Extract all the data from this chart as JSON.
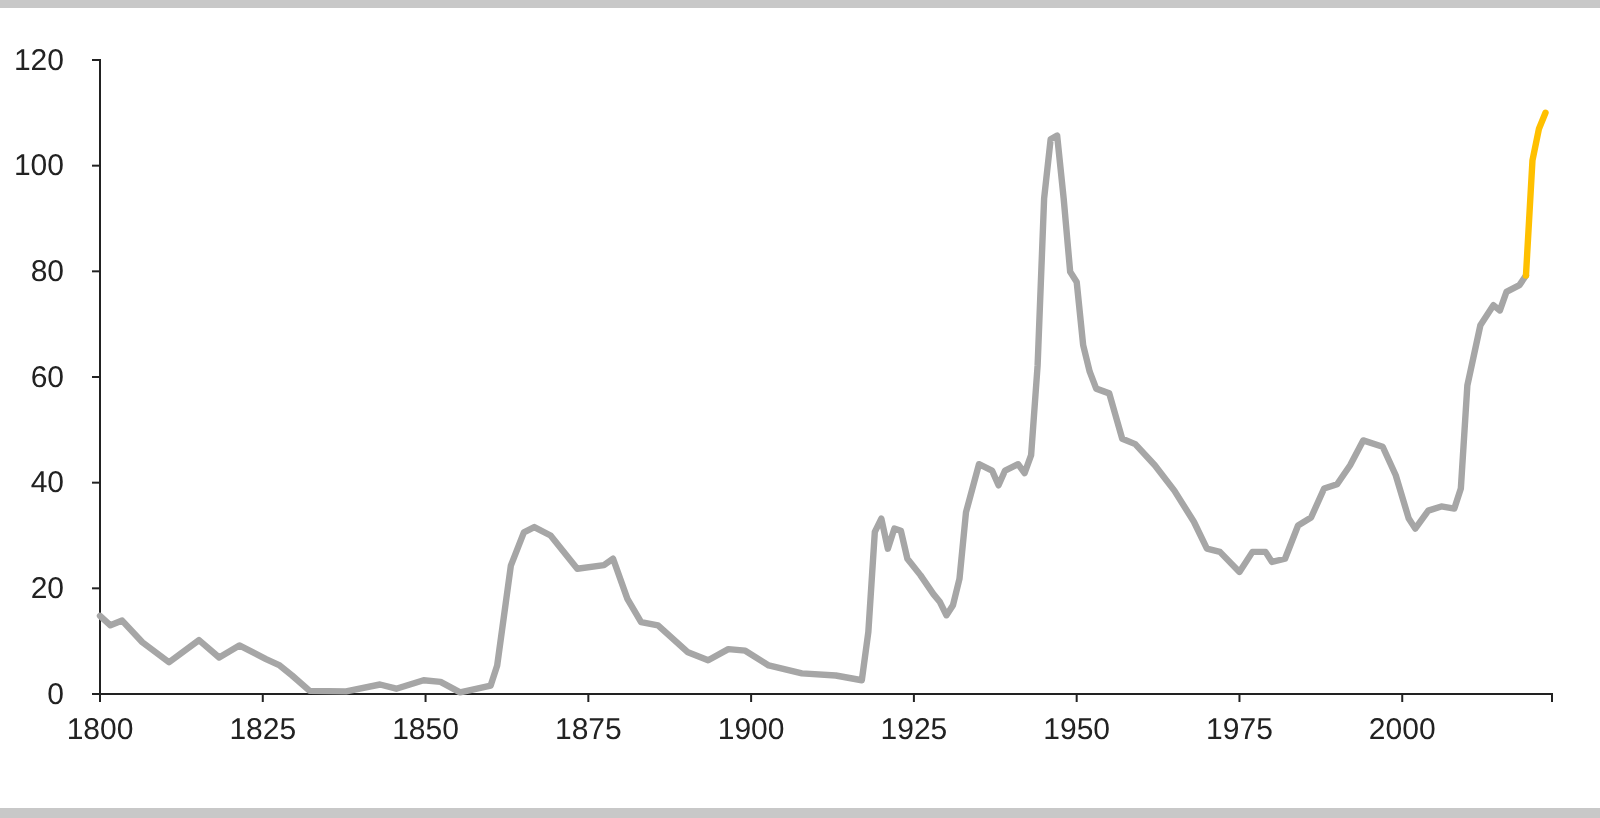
{
  "chart_data": {
    "type": "line",
    "xlim": [
      1800,
      2023
    ],
    "xticks": [
      1800,
      1825,
      1850,
      1875,
      1900,
      1925,
      1950,
      1975,
      2000
    ],
    "ylim": [
      0,
      120
    ],
    "yticks": [
      0,
      20,
      40,
      60,
      80,
      100,
      120
    ],
    "grid": false,
    "series": [
      {
        "color": "#a6a6a6",
        "x": [
          1800,
          1801.6,
          1803.4,
          1806.5,
          1810.6,
          1815.2,
          1818.3,
          1821.4,
          1825.5,
          1827.6,
          1829.5,
          1832.2,
          1837.8,
          1843,
          1845.5,
          1849.7,
          1852.3,
          1855.3,
          1860,
          1861,
          1863.1,
          1865.1,
          1866.7,
          1869.2,
          1873.3,
          1877.4,
          1878.8,
          1881,
          1883.1,
          1885.7,
          1890.3,
          1893.4,
          1896.5,
          1899.1,
          1902.7,
          1907.8,
          1913,
          1917,
          1918,
          1919,
          1920,
          1921,
          1922,
          1923,
          1924,
          1926,
          1928,
          1929,
          1930,
          1931,
          1932,
          1933,
          1935,
          1937,
          1938,
          1939,
          1941,
          1942,
          1943,
          1944,
          1945,
          1946,
          1947,
          1948,
          1949,
          1950,
          1951,
          1952,
          1953,
          1955,
          1957,
          1959,
          1962,
          1965,
          1968,
          1970,
          1972,
          1975,
          1977,
          1979,
          1980,
          1982,
          1984,
          1986,
          1988,
          1990,
          1992,
          1994,
          1997,
          1999,
          2001,
          2002,
          2004,
          2006,
          2008,
          2009,
          2010,
          2012,
          2014,
          2015,
          2016,
          2018,
          2019
        ],
        "values": [
          14.8,
          13,
          13.9,
          9.8,
          6,
          10.2,
          6.9,
          9.2,
          6.6,
          5.4,
          3.5,
          0.6,
          0.5,
          1.8,
          1,
          2.6,
          2.3,
          0.3,
          1.6,
          5.4,
          24.3,
          30.6,
          31.6,
          30,
          23.7,
          24.4,
          25.6,
          18,
          13.6,
          13,
          7.9,
          6.4,
          8.5,
          8.2,
          5.4,
          3.9,
          3.5,
          2.6,
          11.7,
          30.7,
          33.2,
          27.5,
          31.3,
          30.9,
          25.6,
          22.5,
          18.9,
          17.4,
          14.9,
          16.8,
          21.8,
          34.4,
          43.5,
          42.3,
          39.5,
          42.3,
          43.5,
          41.8,
          45.2,
          62.2,
          93.8,
          105,
          105.7,
          93.8,
          79.9,
          78,
          66,
          61,
          57.8,
          56.9,
          48.3,
          47.3,
          43.3,
          38.5,
          32.6,
          27.5,
          26.9,
          23.1,
          26.9,
          26.9,
          25,
          25.6,
          31.9,
          33.4,
          38.9,
          39.7,
          43.3,
          48,
          46.8,
          41.4,
          33.2,
          31.3,
          34.7,
          35.5,
          35.1,
          38.9,
          58.4,
          69.8,
          73.6,
          72.6,
          76.1,
          77.4,
          79.2
        ]
      },
      {
        "color": "#ffc000",
        "x": [
          2019,
          2020,
          2021,
          2022
        ],
        "values": [
          79.2,
          101,
          107,
          110
        ]
      }
    ]
  }
}
